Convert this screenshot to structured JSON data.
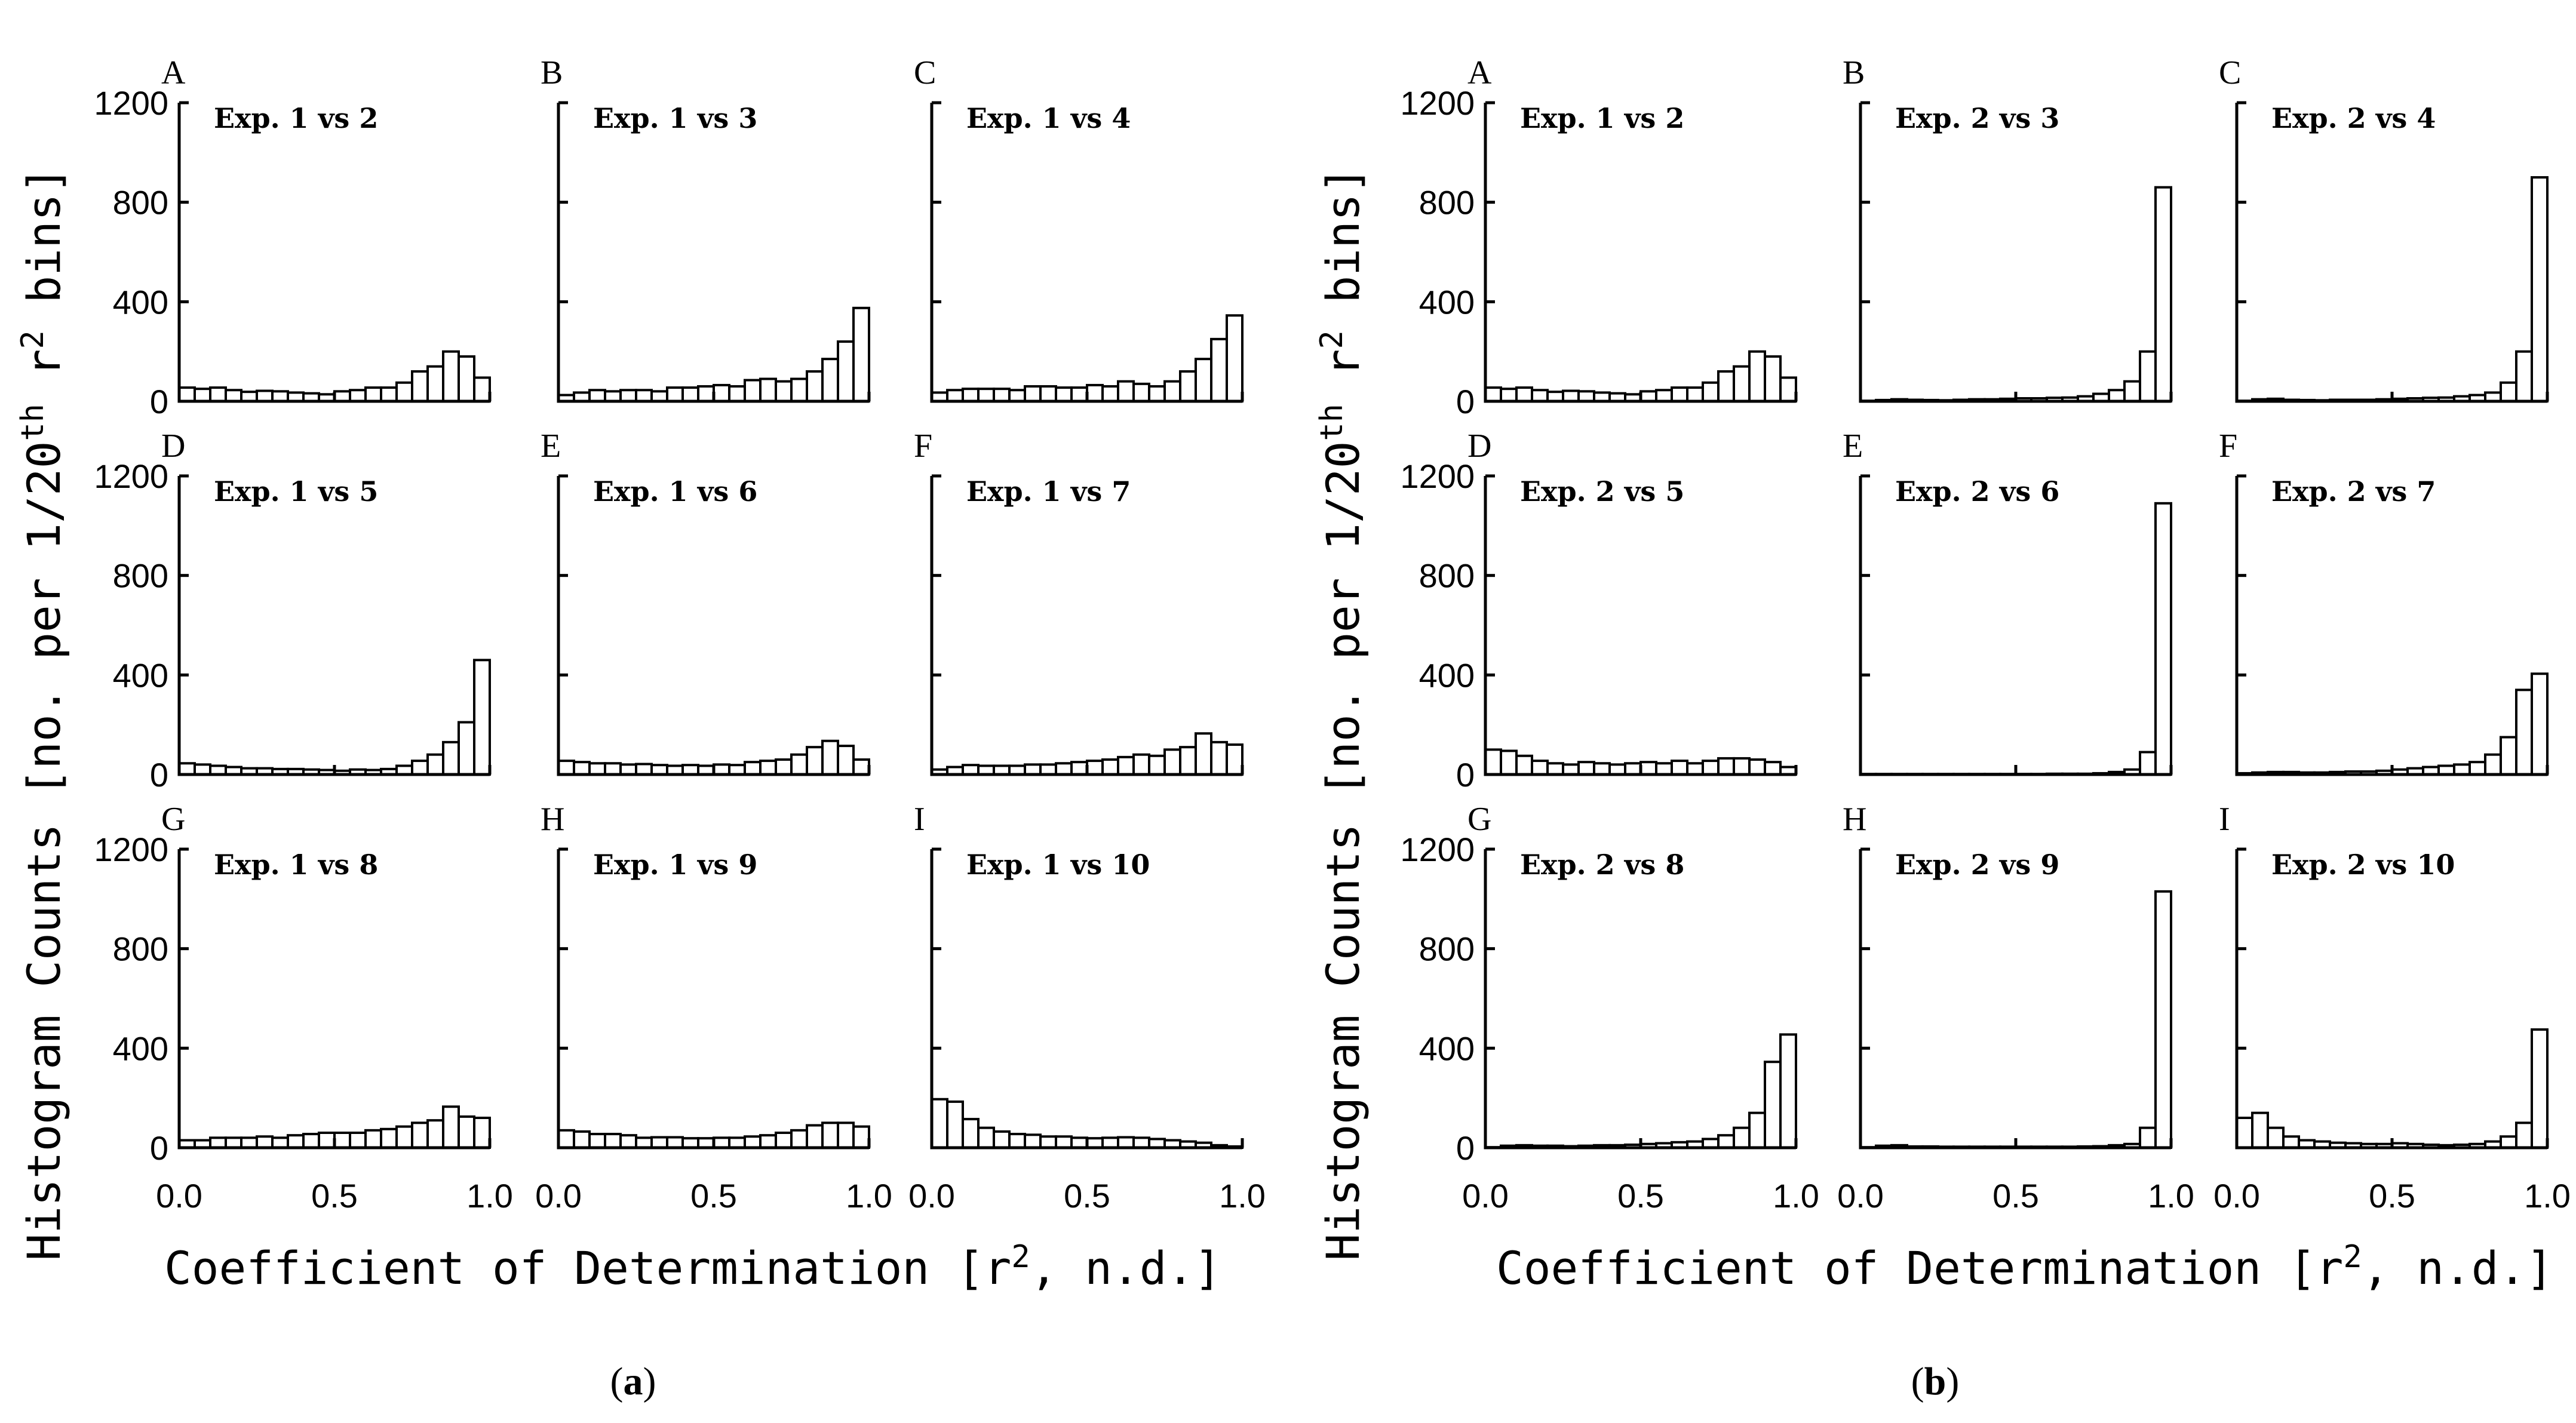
{
  "chart_data": [
    {
      "type": "bar",
      "caption": "a",
      "ylabel_main": "Histogram Counts [no. per 1/20",
      "ylabel_sup": "th",
      "ylabel_tail": " r",
      "ylabel_sup2": "2",
      "ylabel_end": " bins]",
      "xlabel_main": "Coefficient of Determination [r",
      "xlabel_sup": "2",
      "xlabel_end": ", n.d.]",
      "xlim": [
        0,
        1
      ],
      "ylim": [
        0,
        1200
      ],
      "xticks": [
        "0.0",
        "0.5",
        "1.0"
      ],
      "yticks": [
        "0",
        "400",
        "800",
        "1200"
      ],
      "bins": 20,
      "panels": [
        {
          "letter": "A",
          "title": "Exp. 1 vs 2",
          "values": [
            55,
            50,
            55,
            45,
            38,
            42,
            40,
            35,
            32,
            28,
            40,
            45,
            55,
            55,
            75,
            120,
            140,
            200,
            180,
            95
          ]
        },
        {
          "letter": "B",
          "title": "Exp. 1 vs 3",
          "values": [
            25,
            35,
            45,
            40,
            45,
            45,
            40,
            55,
            55,
            60,
            65,
            60,
            85,
            90,
            80,
            90,
            120,
            170,
            240,
            375
          ]
        },
        {
          "letter": "C",
          "title": "Exp. 1 vs 4",
          "values": [
            35,
            45,
            50,
            50,
            50,
            45,
            60,
            60,
            55,
            55,
            65,
            60,
            80,
            70,
            60,
            80,
            120,
            170,
            250,
            345
          ]
        },
        {
          "letter": "D",
          "title": "Exp. 1 vs 5",
          "values": [
            45,
            40,
            35,
            30,
            25,
            25,
            22,
            22,
            20,
            18,
            15,
            20,
            18,
            22,
            35,
            55,
            80,
            130,
            210,
            460
          ]
        },
        {
          "letter": "E",
          "title": "Exp. 1 vs 6",
          "values": [
            55,
            50,
            45,
            45,
            40,
            42,
            38,
            35,
            38,
            35,
            40,
            38,
            50,
            55,
            60,
            80,
            110,
            135,
            115,
            60
          ]
        },
        {
          "letter": "F",
          "title": "Exp. 1 vs 7",
          "values": [
            20,
            30,
            38,
            35,
            35,
            35,
            40,
            40,
            45,
            50,
            55,
            60,
            70,
            80,
            75,
            100,
            110,
            165,
            130,
            120
          ]
        },
        {
          "letter": "G",
          "title": "Exp. 1 vs 8",
          "values": [
            30,
            30,
            40,
            40,
            40,
            45,
            40,
            50,
            55,
            60,
            60,
            60,
            70,
            75,
            85,
            100,
            110,
            165,
            125,
            120
          ]
        },
        {
          "letter": "H",
          "title": "Exp. 1 vs 9",
          "values": [
            70,
            65,
            55,
            55,
            50,
            40,
            42,
            42,
            38,
            38,
            40,
            40,
            45,
            50,
            60,
            70,
            90,
            100,
            100,
            85
          ]
        },
        {
          "letter": "I",
          "title": "Exp. 1 vs 10",
          "values": [
            195,
            185,
            115,
            80,
            65,
            55,
            52,
            45,
            45,
            40,
            38,
            40,
            42,
            40,
            35,
            30,
            25,
            20,
            10,
            5
          ]
        }
      ]
    },
    {
      "type": "bar",
      "caption": "b",
      "ylabel_main": "Histogram Counts [no. per 1/20",
      "ylabel_sup": "th",
      "ylabel_tail": " r",
      "ylabel_sup2": "2",
      "ylabel_end": " bins]",
      "xlabel_main": "Coefficient of Determination [r",
      "xlabel_sup": "2",
      "xlabel_end": ", n.d.]",
      "xlim": [
        0,
        1
      ],
      "ylim": [
        0,
        1200
      ],
      "xticks": [
        "0.0",
        "0.5",
        "1.0"
      ],
      "yticks": [
        "0",
        "400",
        "800",
        "1200"
      ],
      "bins": 20,
      "panels": [
        {
          "letter": "A",
          "title": "Exp. 1 vs 2",
          "values": [
            55,
            50,
            55,
            45,
            38,
            42,
            40,
            35,
            32,
            28,
            40,
            45,
            55,
            55,
            75,
            120,
            140,
            200,
            180,
            95
          ]
        },
        {
          "letter": "B",
          "title": "Exp. 2 vs 3",
          "values": [
            2,
            5,
            8,
            6,
            5,
            4,
            6,
            8,
            8,
            10,
            12,
            12,
            14,
            15,
            20,
            30,
            45,
            80,
            200,
            860
          ]
        },
        {
          "letter": "C",
          "title": "Exp. 2 vs 4",
          "values": [
            2,
            8,
            10,
            6,
            5,
            4,
            6,
            6,
            6,
            8,
            10,
            12,
            14,
            15,
            20,
            25,
            35,
            75,
            200,
            900
          ]
        },
        {
          "letter": "D",
          "title": "Exp. 2 vs 5",
          "values": [
            100,
            95,
            75,
            55,
            45,
            40,
            50,
            45,
            40,
            45,
            50,
            45,
            55,
            45,
            55,
            65,
            65,
            60,
            50,
            30
          ]
        },
        {
          "letter": "E",
          "title": "Exp. 2 vs 6",
          "values": [
            2,
            2,
            2,
            2,
            2,
            2,
            2,
            2,
            2,
            2,
            2,
            2,
            3,
            3,
            3,
            5,
            10,
            20,
            90,
            1090
          ]
        },
        {
          "letter": "F",
          "title": "Exp. 2 vs 7",
          "values": [
            5,
            8,
            10,
            10,
            8,
            8,
            10,
            12,
            12,
            15,
            20,
            25,
            30,
            35,
            40,
            50,
            80,
            150,
            340,
            405
          ]
        },
        {
          "letter": "G",
          "title": "Exp. 2 vs 8",
          "values": [
            2,
            8,
            10,
            8,
            8,
            6,
            8,
            10,
            10,
            12,
            15,
            18,
            22,
            25,
            35,
            50,
            80,
            140,
            345,
            455
          ]
        },
        {
          "letter": "H",
          "title": "Exp. 2 vs 9",
          "values": [
            2,
            8,
            10,
            5,
            5,
            4,
            4,
            4,
            4,
            4,
            4,
            4,
            4,
            4,
            5,
            6,
            10,
            15,
            80,
            1030
          ]
        },
        {
          "letter": "I",
          "title": "Exp. 2 vs 10",
          "values": [
            120,
            140,
            80,
            45,
            30,
            25,
            20,
            18,
            15,
            15,
            18,
            15,
            12,
            10,
            12,
            15,
            25,
            45,
            100,
            475
          ]
        }
      ]
    }
  ]
}
